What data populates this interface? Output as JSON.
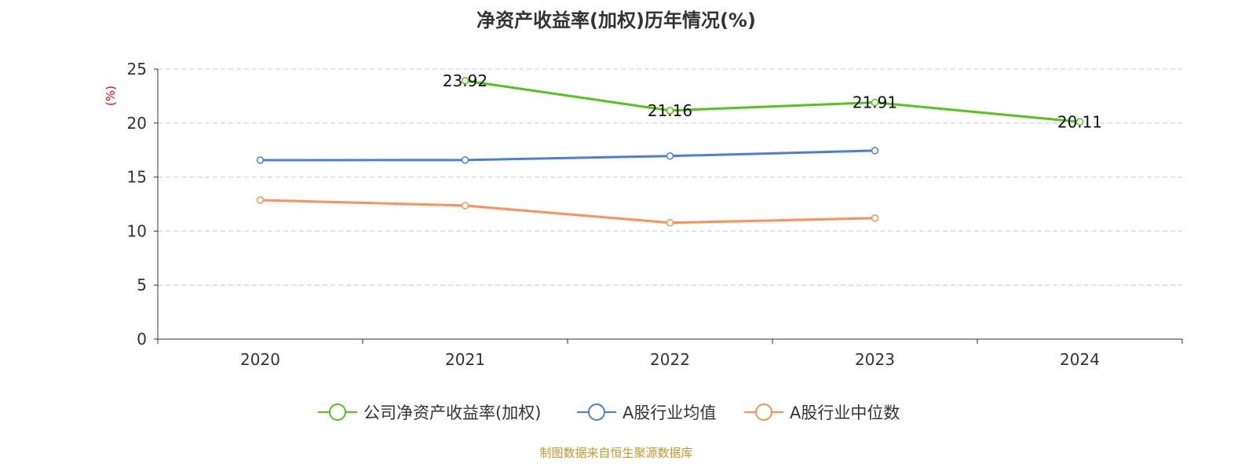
{
  "chart_data": {
    "type": "line",
    "title": "净资产收益率(加权)历年情况(%)",
    "ylabel": "(%)",
    "categories": [
      "2020",
      "2021",
      "2022",
      "2023",
      "2024"
    ],
    "ylim": [
      0,
      25
    ],
    "yticks": [
      0,
      5,
      10,
      15,
      20,
      25
    ],
    "grid": true,
    "legend_position": "bottom",
    "series": [
      {
        "name": "公司净资产收益率(加权)",
        "color": "#52c41a",
        "values": [
          null,
          23.92,
          21.16,
          21.91,
          20.11
        ],
        "labels": true
      },
      {
        "name": "A股行业均值",
        "color": "#4a7fe0",
        "values": [
          16.57,
          16.58,
          16.95,
          17.45,
          null
        ]
      },
      {
        "name": "A股行业中位数",
        "color": "#ff8f55",
        "values": [
          12.87,
          12.36,
          10.77,
          11.2,
          null
        ]
      }
    ]
  },
  "source": "制图数据来自恒生聚源数据库"
}
